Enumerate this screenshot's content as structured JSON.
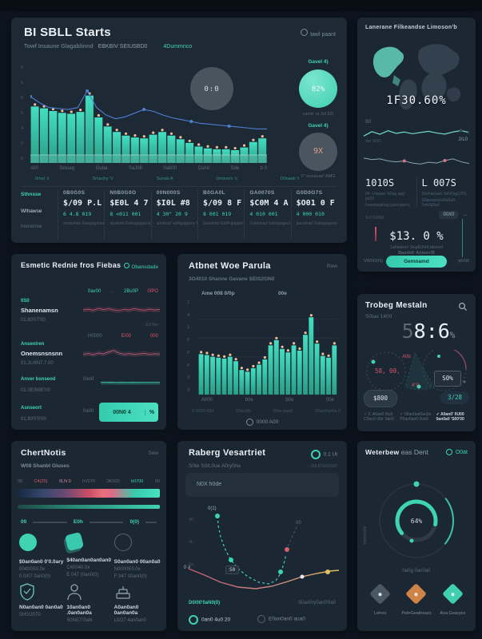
{
  "colors": {
    "accent": "#3ed3b2",
    "red": "#d9556a",
    "orange": "#cf8347",
    "blue-line": "#4d7fd0",
    "bar-dot": "#ecc096",
    "card-bg": "#1c2734",
    "bg": "#0d141d"
  },
  "cards": {
    "sales": {
      "title": "BI SBLL Starts",
      "header_link": "tawl paant",
      "subtitle": "Towf Insaune Glagablinnd",
      "subtitle_bold": "EBKBIV SEIUSBD0",
      "subtitle_link": "4Dummnco",
      "mid_circle": "0:0",
      "gauge1": {
        "label": "Gavel 4)",
        "value": "82%",
        "caption": "came' ot Jul 20)"
      },
      "gauge2": {
        "label": "Gavel 4)",
        "value": "9X",
        "caption": "0° aunauae' AMG"
      },
      "y_ticks": [
        "0",
        "0",
        "6",
        "5",
        "4",
        "0",
        "0"
      ],
      "x_labels": [
        "s00",
        "Setuag",
        "Guba",
        "SaJ06",
        "0ab00",
        "Cund",
        "Sde",
        "b 0"
      ],
      "x_sublabels": [
        "0met 's",
        "Smaohy 'V",
        "Sunab A",
        "0movers 's",
        "D0naab 't"
      ],
      "row_labels": [
        "Sthnsse",
        "Wlhawse",
        "hsoomse"
      ],
      "stats": [
        {
          "head": "0B0G0S",
          "value": "$/09 P.L",
          "sub": "6 4.8 019",
          "caption": "amatahan Gaagagaora 'q"
        },
        {
          "head": "N0B0G0O",
          "value": "$E0L 4 7",
          "sub": "8 <011 001",
          "caption": "abahant Gabagagaora0"
        },
        {
          "head": "00N000S",
          "value": "$I0L #8",
          "sub": "4 30\" 20 9",
          "caption": "amahad 'aaNgagaora 'th"
        },
        {
          "head": "B0GA0L",
          "value": "$/09 8 F",
          "sub": "8 001 019",
          "caption": "Gasahad GaW-gagaora 'q"
        },
        {
          "head": "GA0070S",
          "value": "$C0M 4 A",
          "sub": "4 010 001",
          "caption": "Gataanad Gabagagaora 'ta"
        },
        {
          "head": "G0D0G7S",
          "value": "$O01 0 F",
          "sub": "4 000 010",
          "caption": "pasamad Gabagagaora 'tid"
        }
      ]
    },
    "map": {
      "title": "Lanerane Filkeandse Limoson'b",
      "big_value": "1F30.60%",
      "line1_label_left": "B0",
      "line1_label_sub": "der E00",
      "line1_label_right": "2/L0",
      "stat1": {
        "value": "1010S",
        "caption1": "04. L0awae 'b0ag aag' ja(20",
        "caption2": "Fawwaqahag gaamaan'q"
      },
      "stat2": {
        "value": "L 007S",
        "caption1": "00ahawaa0 0aN0ag(20'0,",
        "caption2": "S0awawa0a0a0aN 0ah0a0a0"
      },
      "left_small": "S/7/S0S0",
      "badge": "00X0",
      "arrow": "→",
      "big_pct": "$13. 0 %",
      "pct_caption1": "1aNeleon SepNJH/Lidesod",
      "pct_caption2": "BaorbiF Anisen'B",
      "footer_left": "VW0O(N)",
      "button": "Gemnamd",
      "footer_right": "pKN9"
    },
    "watch": {
      "title": "Esmetic Rednie fros Fiebas",
      "link": "Obansdade",
      "r1_vals": [
        "0av00",
        "…",
        "2Bu0P",
        "0IPO"
      ],
      "r1": {
        "label": "0S0",
        "name": "Shanenamsn",
        "sub": "01.80'07'00",
        "note": "· E0 f0e"
      },
      "r2_vals": [
        "H0000",
        "E/00",
        "000"
      ],
      "r2": {
        "label": "Ansenlren",
        "name": "Onemsnsnsnn",
        "sub": "01.JL/6N7.7.00"
      },
      "r3": {
        "label": "Anver bsnseod",
        "sub": "01.0E/N0E'00",
        "mid": "0an0"
      },
      "r4": {
        "label": "Asnseort",
        "sub": "01.80'0'0'00",
        "mid": "0a00",
        "button": "00N0 4",
        "button_pct": "%"
      }
    },
    "parula": {
      "title": "Atbnet Woe Parula",
      "link": "Rew",
      "subtitle": "3G4010 Shanne Gavane SEIS2GN0",
      "legend1": "Ame 008 0/0p",
      "legend2": "00e",
      "y_ticks": [
        "2",
        "4",
        "1",
        "5",
        "0",
        "0",
        "0",
        "0"
      ],
      "x_labels": [
        "A000",
        "b0e",
        "b0e",
        "00e"
      ],
      "x_captions": [
        "0 0000 000",
        "00an0b",
        "00er aan0",
        "00an0an0a 0"
      ],
      "footer": "0000 A00"
    },
    "trobeg": {
      "title": "Trobeg Mestaln",
      "subtitle": "S0tae 1400",
      "big_dim": "5",
      "big_main": "8:6",
      "big_pct": "%",
      "label_a": "A0b",
      "label_b": "58, 00,",
      "label_c": "4\"0",
      "label_box": "S0%",
      "pill_left": "$800",
      "pill_right": "3/28",
      "captions": [
        {
          "check": "✓",
          "line1": "0. A0an0 0ry0",
          "line2": "C0an0 00e' 0an0"
        },
        {
          "check": "✓",
          "line1": "00an0an0an0e",
          "line2": "P0an0an0 0ue0"
        },
        {
          "check": "✓",
          "line1": "A0an0' 0U00",
          "line2": "0an0a0 'S00'00"
        }
      ]
    },
    "chert": {
      "title": "ChertNotis",
      "link": "Sew",
      "subtitle": "W08 Shanbt Gluses",
      "ticks": [
        {
          "label": "00",
          "color": "gray"
        },
        {
          "label": "C4(20)",
          "color": "red"
        },
        {
          "label": "0LN 0",
          "color": "pink"
        },
        {
          "label": "hV070",
          "color": "gray"
        },
        {
          "label": "0K000",
          "color": "gray"
        },
        {
          "label": "b0700",
          "color": "teal"
        },
        {
          "label": "00",
          "color": "gray"
        }
      ],
      "mid": [
        {
          "label": "00"
        },
        {
          "label": "E0h"
        },
        {
          "label": "0(0)"
        }
      ],
      "cells": [
        {
          "title": "$0an0an0 0'0.0ary",
          "sub": "00400S0.0x",
          "sub2": "0 0/07 0an0(0)",
          "icon": "circle-solid"
        },
        {
          "title": "$40an0an0an0an0",
          "sub": "C40040.0x",
          "sub2": "E 047 (0an0(0)",
          "icon": "square-tilt"
        },
        {
          "title": "S0an0an0 00an0a0",
          "sub": "N0000E0.0x",
          "sub2": "F 047 00an0(0)",
          "icon": "circle-outline"
        },
        {
          "title": "N0an0an0 0an0a0",
          "sub": "SH0/2070",
          "sub2": "",
          "icon": "shield"
        },
        {
          "title": "10an0an0 .0an0an0a",
          "sub": "S0N07/'0aN",
          "sub2": "",
          "icon": "person"
        },
        {
          "title": "A0an0an0 0an0an0a",
          "sub": "L0/27 4an0an0",
          "sub2": "",
          "icon": "cake"
        }
      ]
    },
    "raberg": {
      "title": "Raberg Vesartriet",
      "status": "0.1 Ut",
      "subtitle": "S0te S0/L0ue A0ry0ne",
      "subtitle_right": "~ 00U0'S/0/200",
      "input_value": "N0X h0de",
      "y_labels": [
        "40",
        "4L",
        "0a"
      ],
      "point_label": "0(1)",
      "box_label": "S0",
      "right_label": "00",
      "left_label": "0 #",
      "footer_left": "D0/00'0aN0(0)",
      "footer_right": "S0an0ry0an0'0a0",
      "radio1": "0an0 4u0 20",
      "radio2": "E0an0an0 aua0"
    },
    "weter": {
      "title": "Weterbew",
      "title2": "eas Dent",
      "link": "O0at",
      "side_label": "0an0an0e",
      "gauge_label": "64%",
      "caption": "0a0g 0an0a0",
      "diamonds": [
        {
          "label": "Lehoo",
          "color": "#4a5866"
        },
        {
          "label": "PeleGeathsazs",
          "color": "#cf8347"
        },
        {
          "label": "Asa Gearyes",
          "color": "#3ecfae"
        }
      ]
    }
  },
  "chart_data": [
    {
      "name": "main-performance",
      "type": "bar",
      "title": "BI SBLL Starts — main performance",
      "categories": [
        "s00",
        "Setuag",
        "Guba",
        "SaJ06",
        "0ab00",
        "Cund",
        "Sde",
        "b 0"
      ],
      "values": [
        62,
        60,
        57,
        55,
        54,
        56,
        74,
        50,
        40,
        34,
        30,
        28,
        27,
        31,
        34,
        30,
        26,
        22,
        18,
        16,
        15,
        15,
        14,
        17,
        23,
        27
      ],
      "line_overlay": [
        70,
        63,
        58,
        57,
        56,
        58,
        76,
        58,
        50,
        46,
        48,
        52,
        56,
        54,
        50,
        47,
        45,
        43,
        41,
        40,
        39,
        38,
        37,
        36,
        35,
        35
      ],
      "line_color": "#4d7fd0",
      "dot_color": "#ecc096",
      "baseline": true,
      "ylim": [
        0,
        100
      ],
      "grid": false,
      "legend_position": "none"
    },
    {
      "name": "parula-bars",
      "type": "bar",
      "title": "Atbnet Woe Parula",
      "categories": [
        "A000",
        "b0e",
        "b0e",
        "00e"
      ],
      "values": [
        46,
        45,
        43,
        42,
        41,
        43,
        38,
        28,
        26,
        30,
        34,
        40,
        56,
        62,
        52,
        48,
        56,
        50,
        68,
        88,
        58,
        44,
        42,
        56
      ],
      "dot_color": "#ecc096",
      "ylim": [
        0,
        100
      ],
      "grid": true,
      "legend_position": "top"
    },
    {
      "name": "map-line-1",
      "type": "line",
      "color": "#6fd8c2",
      "width": 1.2,
      "values": [
        35,
        60,
        45,
        65,
        50,
        58,
        48,
        55,
        62,
        52,
        46,
        58,
        66,
        55
      ],
      "dot_indices": [
        12,
        13
      ],
      "dot_color": "#3c4a57"
    },
    {
      "name": "map-line-2",
      "type": "line",
      "color": "#8aa6a8",
      "width": 1,
      "values": [
        62,
        55,
        58,
        48,
        44,
        48,
        38,
        33,
        42,
        38,
        50,
        58,
        44,
        36
      ],
      "dot_indices": [
        5,
        10
      ],
      "dot_color": "#d9718a"
    },
    {
      "name": "spark-red",
      "type": "line",
      "color": "#c0516b",
      "width": 1,
      "strands": 3,
      "values": [
        50,
        55,
        48,
        60,
        52,
        58,
        50,
        46,
        54,
        50,
        58,
        52,
        48,
        55,
        50,
        53
      ]
    },
    {
      "name": "spark-pink",
      "type": "line",
      "color": "#b85c74",
      "width": 1,
      "strands": 3,
      "values": [
        48,
        52,
        46,
        55,
        50,
        62,
        70,
        55,
        48,
        52,
        47,
        50,
        53,
        48,
        51,
        49
      ]
    },
    {
      "name": "spark-teal",
      "type": "line",
      "color": "#3ed3b2",
      "width": 1,
      "strands": 2,
      "values": [
        55,
        54,
        55,
        53,
        54,
        53,
        54,
        53,
        52,
        53,
        52,
        52
      ]
    },
    {
      "name": "raberg-dashed",
      "type": "line",
      "color": "#3ed3b2",
      "width": 1.2,
      "dashed": true,
      "points": [
        [
          40,
          16
        ],
        [
          41,
          28
        ],
        [
          44,
          42
        ],
        [
          49,
          56
        ],
        [
          56,
          70
        ],
        [
          66,
          82
        ],
        [
          78,
          92
        ],
        [
          92,
          99
        ],
        [
          104,
          101
        ],
        [
          113,
          97
        ],
        [
          119,
          88
        ],
        [
          123,
          76
        ],
        [
          126,
          64
        ]
      ],
      "dots": [
        {
          "x": 40,
          "y": 16,
          "r": 3,
          "color": "#3ed3b2"
        },
        {
          "x": 57,
          "y": 71,
          "r": 3,
          "color": "#3ed3b2"
        },
        {
          "x": 119,
          "y": 86,
          "r": 3,
          "color": "#3ed3b2"
        },
        {
          "x": 127,
          "y": 58,
          "r": 3,
          "color": "#d0606c"
        }
      ]
    },
    {
      "name": "raberg-tail",
      "type": "line",
      "color": "#4a5864",
      "width": 1,
      "dashed": true,
      "points": [
        [
          128,
          54
        ],
        [
          140,
          28
        ]
      ]
    },
    {
      "name": "raberg-flow",
      "type": "line",
      "gradient": "flowGrad",
      "width": 1.4,
      "points": [
        [
          4,
          82
        ],
        [
          24,
          90
        ],
        [
          44,
          99
        ],
        [
          66,
          105
        ],
        [
          88,
          107
        ],
        [
          108,
          104
        ],
        [
          128,
          98
        ],
        [
          146,
          92
        ],
        [
          164,
          88
        ],
        [
          180,
          85
        ],
        [
          192,
          84
        ]
      ],
      "dots": [
        {
          "x": 146,
          "y": 92,
          "r": 2.5,
          "color": "#e6edf3"
        },
        {
          "x": 178,
          "y": 86,
          "r": 3,
          "color": "#e0c060"
        }
      ]
    },
    {
      "name": "weter-gauge",
      "type": "pie",
      "title": "Weterbew eas Dent gauge",
      "values": [
        64,
        36
      ],
      "label": "64%"
    }
  ]
}
